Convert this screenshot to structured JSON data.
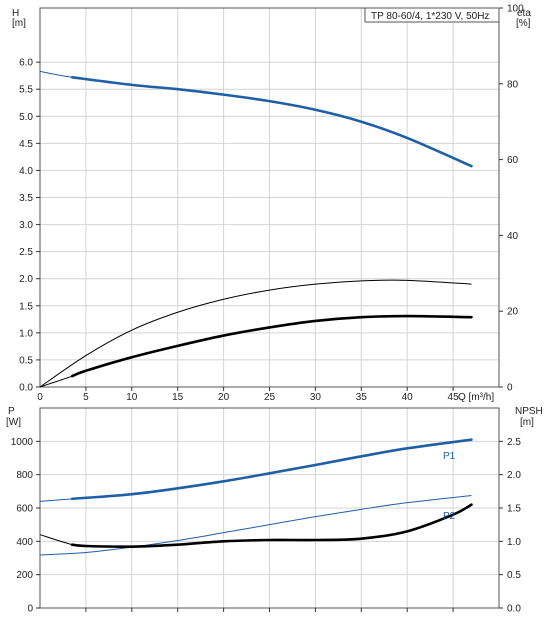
{
  "colors": {
    "blue": "#1f5fa6",
    "black": "#000000",
    "grid": "#d4d4d4"
  },
  "chart_data": [
    {
      "type": "line",
      "title": "TP 80-60/4, 1*230 V, 50Hz",
      "xlabel": "Q [m³/h]",
      "x_ticks": [
        "0",
        "5",
        "10",
        "15",
        "20",
        "25",
        "30",
        "35",
        "40",
        "45"
      ],
      "xlim": [
        0,
        50
      ],
      "ylabel_left": [
        "H",
        "[m]"
      ],
      "ylim_left": [
        0,
        7
      ],
      "y_ticks_left": [
        "0.0",
        "0.5",
        "1.0",
        "1.5",
        "2.0",
        "2.5",
        "3.0",
        "3.5",
        "4.0",
        "4.5",
        "5.0",
        "5.5",
        "6.0"
      ],
      "ylabel_right": [
        "eta",
        "[%]"
      ],
      "ylim_right": [
        0,
        100
      ],
      "y_ticks_right": [
        "0",
        "20",
        "40",
        "60",
        "80",
        "100"
      ],
      "grid": true,
      "series": [
        {
          "axis": "left",
          "color": "#1f5fa6",
          "style": "thin-then-thick",
          "thick_from": 3.5,
          "x": [
            0,
            3.5,
            10,
            15,
            20,
            25,
            30,
            35,
            40,
            47
          ],
          "y": [
            5.83,
            5.72,
            5.58,
            5.5,
            5.4,
            5.28,
            5.12,
            4.9,
            4.6,
            4.08
          ]
        },
        {
          "axis": "left",
          "color": "#000000",
          "style": "thin",
          "x": [
            0,
            5,
            10,
            15,
            20,
            25,
            30,
            35,
            40,
            47
          ],
          "y": [
            0,
            0.58,
            1.05,
            1.38,
            1.62,
            1.79,
            1.9,
            1.96,
            1.97,
            1.9
          ]
        },
        {
          "axis": "left",
          "color": "#000000",
          "style": "thin-then-thick",
          "thick_from": 3.5,
          "x": [
            0,
            3.5,
            5,
            10,
            15,
            20,
            25,
            30,
            35,
            40,
            47
          ],
          "y": [
            0,
            0.2,
            0.3,
            0.55,
            0.76,
            0.95,
            1.1,
            1.22,
            1.29,
            1.31,
            1.29
          ]
        }
      ]
    },
    {
      "type": "line",
      "ylabel_left": [
        "P",
        "[W]"
      ],
      "ylim_left": [
        0,
        1200
      ],
      "y_ticks_left": [
        "0",
        "200",
        "400",
        "600",
        "800",
        "1000"
      ],
      "ylabel_right": [
        "NPSH",
        "[m]"
      ],
      "ylim_right": [
        0,
        3
      ],
      "y_ticks_right": [
        "0.0",
        "0.5",
        "1.0",
        "1.5",
        "2.0",
        "2.5"
      ],
      "xlim": [
        0,
        50
      ],
      "grid": true,
      "series": [
        {
          "name": "P1",
          "axis": "left",
          "color": "#1f5fa6",
          "style": "thin-then-thick",
          "thick_from": 3.5,
          "x": [
            0,
            3.5,
            10,
            15,
            20,
            25,
            30,
            35,
            40,
            47
          ],
          "y": [
            640,
            655,
            683,
            718,
            760,
            808,
            858,
            910,
            958,
            1010
          ]
        },
        {
          "name": "P2",
          "axis": "left",
          "color": "#1f5fa6",
          "style": "thin",
          "x": [
            0,
            5,
            10,
            15,
            20,
            25,
            30,
            35,
            40,
            47
          ],
          "y": [
            318,
            333,
            365,
            405,
            452,
            500,
            548,
            592,
            632,
            675
          ]
        },
        {
          "axis": "right",
          "color": "#000000",
          "style": "thin-then-thick",
          "thick_from": 3.5,
          "x": [
            0,
            3.5,
            5,
            10,
            15,
            20,
            25,
            30,
            35,
            40,
            45,
            47
          ],
          "y": [
            1.1,
            0.95,
            0.93,
            0.92,
            0.95,
            1.0,
            1.02,
            1.02,
            1.04,
            1.15,
            1.4,
            1.55
          ]
        }
      ]
    }
  ]
}
